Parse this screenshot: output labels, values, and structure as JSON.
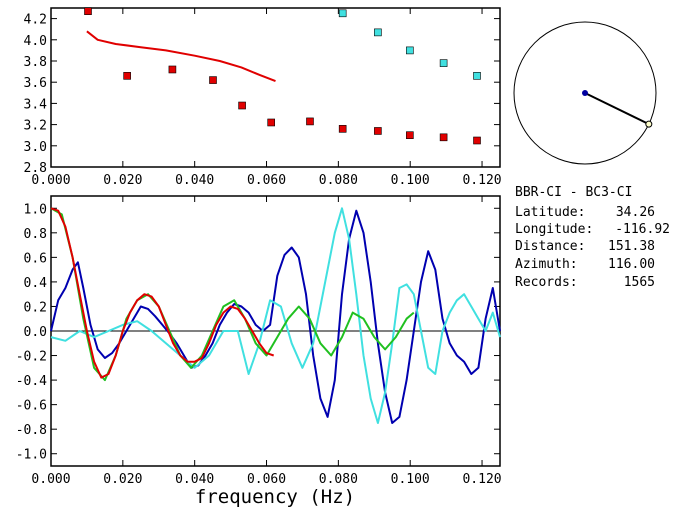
{
  "info": {
    "station_pair": "BBR-CI  -  BC3-CI",
    "latitude_label": "Latitude:",
    "latitude": "34.26",
    "longitude_label": "Longitude:",
    "longitude": "-116.92",
    "distance_label": "Distance:",
    "distance": "151.38",
    "azimuth_label": "Azimuth:",
    "azimuth": "116.00",
    "records_label": "Records:",
    "records": "1565"
  },
  "azimuth_dial": {
    "azimuth_deg": 116.0,
    "needle_color": "#000000",
    "center_color": "#0000a0",
    "tip_color": "#ffffcc"
  },
  "chart_data": [
    {
      "type": "scatter",
      "title": "",
      "xlabel": "",
      "ylabel": "",
      "xlim": [
        0.0,
        0.125
      ],
      "ylim": [
        2.8,
        4.3
      ],
      "x_ticks": [
        "0.000",
        "0.020",
        "0.040",
        "0.060",
        "0.080",
        "0.100",
        "0.120"
      ],
      "y_ticks": [
        "2.8",
        "3.0",
        "3.2",
        "3.4",
        "3.6",
        "3.8",
        "4.0",
        "4.2"
      ],
      "x_tick_values": [
        0.0,
        0.02,
        0.04,
        0.06,
        0.08,
        0.1,
        0.12
      ],
      "y_tick_values": [
        2.8,
        3.0,
        3.2,
        3.4,
        3.6,
        3.8,
        4.0,
        4.2
      ],
      "series": [
        {
          "kind": "points",
          "color": "#e00000",
          "x": [
            0.0103,
            0.0212,
            0.0338,
            0.0451,
            0.0532,
            0.0613,
            0.0721,
            0.0812,
            0.091,
            0.0999,
            0.1093,
            0.1186
          ],
          "y": [
            4.27,
            3.66,
            3.72,
            3.62,
            3.38,
            3.22,
            3.23,
            3.16,
            3.14,
            3.1,
            3.08,
            3.05
          ]
        },
        {
          "kind": "points",
          "color": "#40e0e0",
          "x": [
            0.0812,
            0.091,
            0.0999,
            0.1093,
            0.1186
          ],
          "y": [
            4.25,
            4.07,
            3.9,
            3.78,
            3.66
          ]
        },
        {
          "kind": "line",
          "color": "#e00000",
          "x": [
            0.01,
            0.013,
            0.018,
            0.025,
            0.032,
            0.04,
            0.047,
            0.053,
            0.058,
            0.0625
          ],
          "y": [
            4.08,
            4.0,
            3.96,
            3.93,
            3.9,
            3.85,
            3.8,
            3.74,
            3.67,
            3.61
          ]
        }
      ]
    },
    {
      "type": "line",
      "title": "",
      "xlabel": "frequency  (Hz)",
      "ylabel": "",
      "xlim": [
        0.0,
        0.125
      ],
      "ylim": [
        -1.1,
        1.1
      ],
      "x_ticks": [
        "0.000",
        "0.020",
        "0.040",
        "0.060",
        "0.080",
        "0.100",
        "0.120"
      ],
      "y_ticks": [
        "1.0",
        "0.8",
        "0.6",
        "0.4",
        "0.2",
        "0.0",
        "-0.2",
        "-0.4",
        "-0.6",
        "-0.8",
        "-1.0"
      ],
      "x_tick_values": [
        0.0,
        0.02,
        0.04,
        0.06,
        0.08,
        0.1,
        0.12
      ],
      "y_tick_values": [
        1.0,
        0.8,
        0.6,
        0.4,
        0.2,
        0.0,
        -0.2,
        -0.4,
        -0.6,
        -0.8,
        -1.0
      ],
      "zero_line": true,
      "series": [
        {
          "color": "#0000b0",
          "x": [
            0.0,
            0.002,
            0.004,
            0.006,
            0.0075,
            0.009,
            0.011,
            0.013,
            0.015,
            0.017,
            0.019,
            0.021,
            0.023,
            0.025,
            0.027,
            0.029,
            0.031,
            0.033,
            0.035,
            0.037,
            0.039,
            0.041,
            0.043,
            0.045,
            0.047,
            0.049,
            0.051,
            0.053,
            0.055,
            0.057,
            0.059,
            0.061,
            0.063,
            0.065,
            0.067,
            0.069,
            0.071,
            0.073,
            0.075,
            0.077,
            0.079,
            0.081,
            0.083,
            0.085,
            0.087,
            0.089,
            0.091,
            0.093,
            0.095,
            0.097,
            0.099,
            0.101,
            0.103,
            0.105,
            0.107,
            0.109,
            0.111,
            0.113,
            0.115,
            0.117,
            0.119,
            0.121,
            0.123,
            0.125
          ],
          "y": [
            0.0,
            0.25,
            0.35,
            0.5,
            0.56,
            0.35,
            0.05,
            -0.15,
            -0.22,
            -0.18,
            -0.1,
            0.0,
            0.1,
            0.2,
            0.18,
            0.12,
            0.05,
            -0.02,
            -0.1,
            -0.2,
            -0.3,
            -0.28,
            -0.2,
            -0.1,
            0.05,
            0.15,
            0.22,
            0.2,
            0.15,
            0.05,
            0.0,
            0.05,
            0.45,
            0.62,
            0.68,
            0.6,
            0.3,
            -0.2,
            -0.55,
            -0.7,
            -0.4,
            0.3,
            0.75,
            0.98,
            0.8,
            0.4,
            -0.1,
            -0.5,
            -0.75,
            -0.7,
            -0.4,
            0.0,
            0.4,
            0.65,
            0.5,
            0.1,
            -0.1,
            -0.2,
            -0.25,
            -0.35,
            -0.3,
            0.1,
            0.35,
            0.0
          ]
        },
        {
          "color": "#40e0e0",
          "x": [
            0.0,
            0.004,
            0.008,
            0.012,
            0.016,
            0.02,
            0.024,
            0.028,
            0.032,
            0.036,
            0.04,
            0.044,
            0.048,
            0.052,
            0.055,
            0.058,
            0.061,
            0.064,
            0.067,
            0.07,
            0.073,
            0.076,
            0.079,
            0.081,
            0.083,
            0.085,
            0.087,
            0.089,
            0.091,
            0.093,
            0.095,
            0.097,
            0.099,
            0.101,
            0.103,
            0.105,
            0.107,
            0.109,
            0.111,
            0.113,
            0.115,
            0.117,
            0.119,
            0.121,
            0.123,
            0.125
          ],
          "y": [
            -0.05,
            -0.08,
            0.0,
            -0.05,
            0.0,
            0.05,
            0.08,
            0.0,
            -0.1,
            -0.2,
            -0.3,
            -0.2,
            0.0,
            0.0,
            -0.35,
            -0.1,
            0.25,
            0.2,
            -0.1,
            -0.3,
            -0.1,
            0.35,
            0.8,
            1.0,
            0.75,
            0.3,
            -0.2,
            -0.55,
            -0.75,
            -0.5,
            -0.1,
            0.35,
            0.38,
            0.3,
            0.0,
            -0.3,
            -0.35,
            0.0,
            0.15,
            0.25,
            0.3,
            0.2,
            0.1,
            0.0,
            0.15,
            -0.05
          ]
        },
        {
          "color": "#20c020",
          "x": [
            0.0,
            0.003,
            0.006,
            0.009,
            0.012,
            0.015,
            0.018,
            0.021,
            0.024,
            0.027,
            0.03,
            0.033,
            0.036,
            0.039,
            0.042,
            0.045,
            0.048,
            0.051,
            0.054,
            0.057,
            0.06,
            0.063,
            0.066,
            0.069,
            0.072,
            0.075,
            0.078,
            0.081,
            0.084,
            0.087,
            0.09,
            0.093,
            0.096,
            0.099,
            0.101
          ],
          "y": [
            1.0,
            0.95,
            0.6,
            0.1,
            -0.3,
            -0.4,
            -0.2,
            0.1,
            0.25,
            0.3,
            0.2,
            0.0,
            -0.2,
            -0.3,
            -0.2,
            0.0,
            0.2,
            0.25,
            0.1,
            -0.1,
            -0.2,
            -0.05,
            0.1,
            0.2,
            0.1,
            -0.1,
            -0.2,
            -0.05,
            0.15,
            0.1,
            -0.05,
            -0.15,
            -0.05,
            0.1,
            0.15
          ]
        },
        {
          "color": "#e00000",
          "x": [
            0.0,
            0.002,
            0.004,
            0.006,
            0.008,
            0.01,
            0.012,
            0.014,
            0.016,
            0.018,
            0.02,
            0.022,
            0.024,
            0.026,
            0.028,
            0.03,
            0.032,
            0.034,
            0.036,
            0.038,
            0.04,
            0.042,
            0.044,
            0.046,
            0.048,
            0.05,
            0.052,
            0.054,
            0.056,
            0.058,
            0.06,
            0.062
          ],
          "y": [
            1.0,
            0.98,
            0.85,
            0.6,
            0.3,
            0.0,
            -0.25,
            -0.38,
            -0.35,
            -0.2,
            0.0,
            0.15,
            0.25,
            0.3,
            0.28,
            0.2,
            0.05,
            -0.1,
            -0.2,
            -0.25,
            -0.25,
            -0.22,
            -0.1,
            0.05,
            0.15,
            0.2,
            0.18,
            0.1,
            0.0,
            -0.1,
            -0.18,
            -0.2
          ]
        }
      ]
    }
  ]
}
